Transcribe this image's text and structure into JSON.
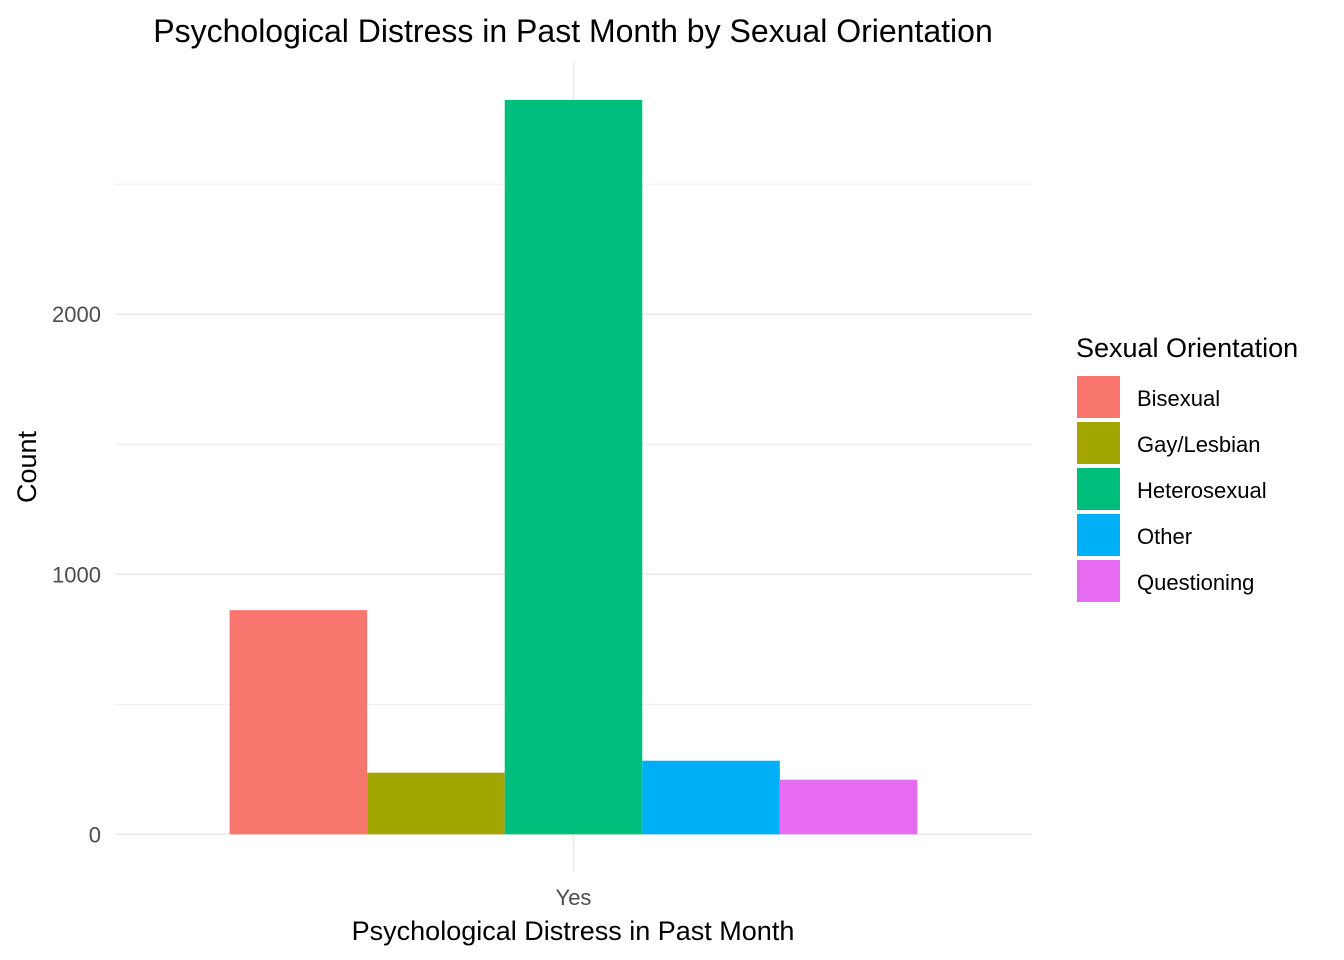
{
  "chart_data": {
    "type": "bar",
    "title": "Psychological Distress in Past Month by Sexual Orientation",
    "xlabel": "Psychological Distress in Past Month",
    "ylabel": "Count",
    "categories": [
      "Yes"
    ],
    "series": [
      {
        "name": "Bisexual",
        "values": [
          862
        ],
        "color": "#F8766D"
      },
      {
        "name": "Gay/Lesbian",
        "values": [
          237
        ],
        "color": "#A3A500"
      },
      {
        "name": "Heterosexual",
        "values": [
          2824
        ],
        "color": "#00BF7D"
      },
      {
        "name": "Other",
        "values": [
          283
        ],
        "color": "#00B0F6"
      },
      {
        "name": "Questioning",
        "values": [
          210
        ],
        "color": "#E76BF3"
      }
    ],
    "yticks": [
      0,
      1000,
      2000
    ],
    "ylim": [
      -145,
      2970
    ],
    "grid": true,
    "legend_title": "Sexual Orientation",
    "legend_position": "right"
  }
}
